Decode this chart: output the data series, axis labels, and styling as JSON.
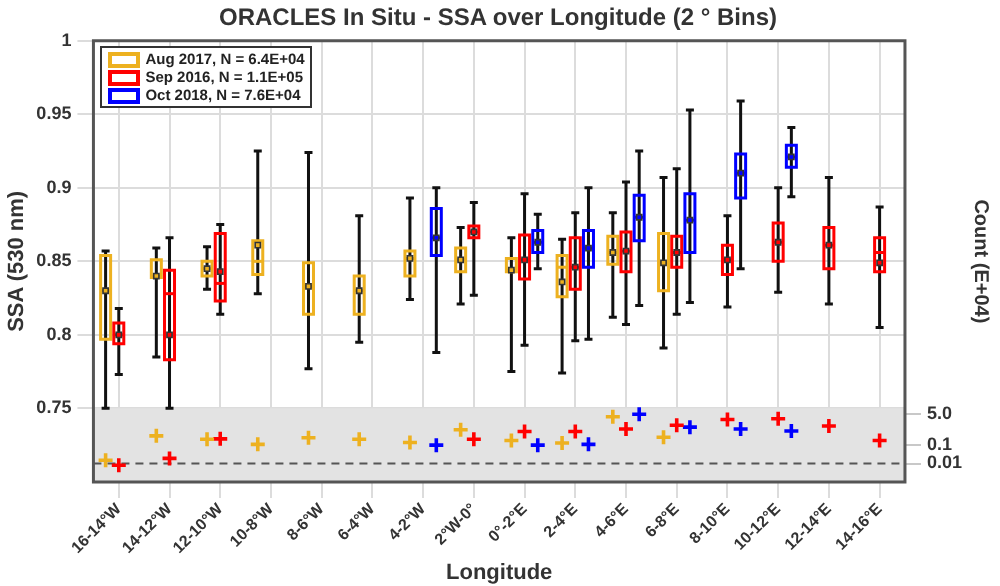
{
  "chart_data": {
    "type": "box",
    "title": "ORACLES In Situ - SSA over Longitude (2 ° Bins)",
    "xlabel": "Longitude",
    "ylabel": "SSA (530 nm)",
    "y2label": "Count (E+04)",
    "categories": [
      "16-14°W",
      "14-12°W",
      "12-10°W",
      "10-8°W",
      "8-6°W",
      "6-4°W",
      "4-2°W",
      "2°W-0°",
      "0°-2°E",
      "2-4°E",
      "4-6°E",
      "6-8°E",
      "8-10°E",
      "10-12°E",
      "12-14°E",
      "14-16°E"
    ],
    "ylim": [
      0.7,
      1
    ],
    "yticks": [
      0.75,
      0.8,
      0.85,
      0.9,
      0.95,
      1
    ],
    "y2lim": [
      0.001,
      1e+21
    ],
    "y2ticks": [
      {
        "value": 0.01,
        "label": "0.01"
      },
      0.1,
      {
        "value": 5,
        "label": "5.0"
      }
    ],
    "log": "y2",
    "grid": true,
    "legend": "top left",
    "bands": [
      {
        "axis": "y",
        "from": 0.7,
        "to": 0.75,
        "color": "#e3e3e3"
      }
    ],
    "ref_lines": [
      {
        "axis": "y2",
        "value": 0.01,
        "color": "#555555",
        "line_style": "dashed"
      }
    ],
    "series": [
      {
        "name": "Aug 2017, N = 6.4E+04",
        "color": "#edb120",
        "boxes": [
          {
            "low": 0.75,
            "q1": 0.797,
            "median": 0.83,
            "q3": 0.854,
            "high": 0.857,
            "mean": 0.83
          },
          {
            "low": 0.785,
            "q1": 0.839,
            "median": 0.84,
            "q3": 0.851,
            "high": 0.859,
            "mean": 0.84
          },
          {
            "low": 0.831,
            "q1": 0.84,
            "median": 0.845,
            "q3": 0.85,
            "high": 0.86,
            "mean": 0.845
          },
          {
            "low": 0.828,
            "q1": 0.841,
            "median": 0.85,
            "q3": 0.864,
            "high": 0.925,
            "mean": 0.861
          },
          {
            "low": 0.777,
            "q1": 0.814,
            "median": 0.833,
            "q3": 0.849,
            "high": 0.924,
            "mean": 0.833
          },
          {
            "low": 0.795,
            "q1": 0.814,
            "median": 0.83,
            "q3": 0.84,
            "high": 0.881,
            "mean": 0.83
          },
          {
            "low": 0.824,
            "q1": 0.84,
            "median": 0.852,
            "q3": 0.857,
            "high": 0.893,
            "mean": 0.852
          },
          {
            "low": 0.821,
            "q1": 0.843,
            "median": 0.851,
            "q3": 0.859,
            "high": 0.873,
            "mean": 0.851
          },
          {
            "low": 0.775,
            "q1": 0.843,
            "median": 0.844,
            "q3": 0.852,
            "high": 0.866,
            "mean": 0.844
          },
          {
            "low": 0.774,
            "q1": 0.826,
            "median": 0.846,
            "q3": 0.854,
            "high": 0.865,
            "mean": 0.836
          },
          {
            "low": 0.812,
            "q1": 0.848,
            "median": 0.856,
            "q3": 0.867,
            "high": 0.883,
            "mean": 0.856
          },
          {
            "low": 0.791,
            "q1": 0.83,
            "median": 0.849,
            "q3": 0.869,
            "high": 0.907,
            "mean": 0.849
          },
          null,
          null,
          null,
          null
        ]
      },
      {
        "name": "Sep 2016, N = 1.1E+05",
        "color": "#ff0000",
        "boxes": [
          {
            "low": 0.773,
            "q1": 0.794,
            "median": 0.8,
            "q3": 0.808,
            "high": 0.818,
            "mean": 0.8
          },
          {
            "low": 0.75,
            "q1": 0.783,
            "median": 0.828,
            "q3": 0.844,
            "high": 0.866,
            "mean": 0.8
          },
          {
            "low": 0.814,
            "q1": 0.823,
            "median": 0.835,
            "q3": 0.869,
            "high": 0.875,
            "mean": 0.843
          },
          null,
          null,
          null,
          null,
          {
            "low": 0.827,
            "q1": 0.866,
            "median": 0.87,
            "q3": 0.874,
            "high": 0.89,
            "mean": 0.87
          },
          {
            "low": 0.793,
            "q1": 0.838,
            "median": 0.851,
            "q3": 0.868,
            "high": 0.896,
            "mean": 0.851
          },
          {
            "low": 0.796,
            "q1": 0.831,
            "median": 0.846,
            "q3": 0.866,
            "high": 0.883,
            "mean": 0.846
          },
          {
            "low": 0.807,
            "q1": 0.843,
            "median": 0.857,
            "q3": 0.87,
            "high": 0.904,
            "mean": 0.857
          },
          {
            "low": 0.814,
            "q1": 0.846,
            "median": 0.856,
            "q3": 0.867,
            "high": 0.913,
            "mean": 0.856
          },
          {
            "low": 0.819,
            "q1": 0.841,
            "median": 0.851,
            "q3": 0.861,
            "high": 0.881,
            "mean": 0.851
          },
          {
            "low": 0.829,
            "q1": 0.85,
            "median": 0.863,
            "q3": 0.876,
            "high": 0.9,
            "mean": 0.863
          },
          {
            "low": 0.821,
            "q1": 0.845,
            "median": 0.861,
            "q3": 0.873,
            "high": 0.907,
            "mean": 0.861
          },
          {
            "low": 0.805,
            "q1": 0.843,
            "median": 0.856,
            "q3": 0.866,
            "high": 0.887,
            "mean": 0.849
          }
        ]
      },
      {
        "name": "Oct 2018, N = 7.6E+04",
        "color": "#0000ff",
        "boxes": [
          null,
          null,
          null,
          null,
          null,
          null,
          {
            "low": 0.788,
            "q1": 0.854,
            "median": 0.866,
            "q3": 0.886,
            "high": 0.9,
            "mean": 0.866
          },
          null,
          {
            "low": 0.845,
            "q1": 0.856,
            "median": 0.863,
            "q3": 0.871,
            "high": 0.882,
            "mean": 0.863
          },
          {
            "low": 0.797,
            "q1": 0.846,
            "median": 0.859,
            "q3": 0.871,
            "high": 0.9,
            "mean": 0.859
          },
          {
            "low": 0.82,
            "q1": 0.864,
            "median": 0.88,
            "q3": 0.895,
            "high": 0.925,
            "mean": 0.88
          },
          {
            "low": 0.822,
            "q1": 0.856,
            "median": 0.878,
            "q3": 0.896,
            "high": 0.953,
            "mean": 0.878
          },
          {
            "low": 0.845,
            "q1": 0.893,
            "median": 0.91,
            "q3": 0.923,
            "high": 0.959,
            "mean": 0.91
          },
          {
            "low": 0.894,
            "q1": 0.914,
            "median": 0.921,
            "q3": 0.929,
            "high": 0.941,
            "mean": 0.921
          },
          null,
          null
        ]
      },
      {
        "type": "scatter",
        "axis": "y2",
        "marker": "cross",
        "color": "#edb120",
        "values": [
          0.015,
          0.32,
          0.21,
          0.11,
          0.25,
          0.21,
          0.14,
          0.69,
          0.18,
          0.13,
          3.5,
          0.27,
          null,
          null,
          null,
          null
        ]
      },
      {
        "type": "scatter",
        "axis": "y2",
        "marker": "cross",
        "color": "#ff0000",
        "values": [
          0.008,
          0.019,
          0.22,
          null,
          null,
          null,
          null,
          0.21,
          0.55,
          0.55,
          0.75,
          1.2,
          2.5,
          2.7,
          1.1,
          0.18
        ]
      },
      {
        "type": "scatter",
        "axis": "y2",
        "marker": "cross",
        "color": "#0000ff",
        "values": [
          null,
          null,
          null,
          null,
          null,
          null,
          0.1,
          null,
          0.1,
          0.11,
          4.8,
          0.95,
          0.75,
          0.59,
          null,
          null
        ]
      }
    ]
  }
}
